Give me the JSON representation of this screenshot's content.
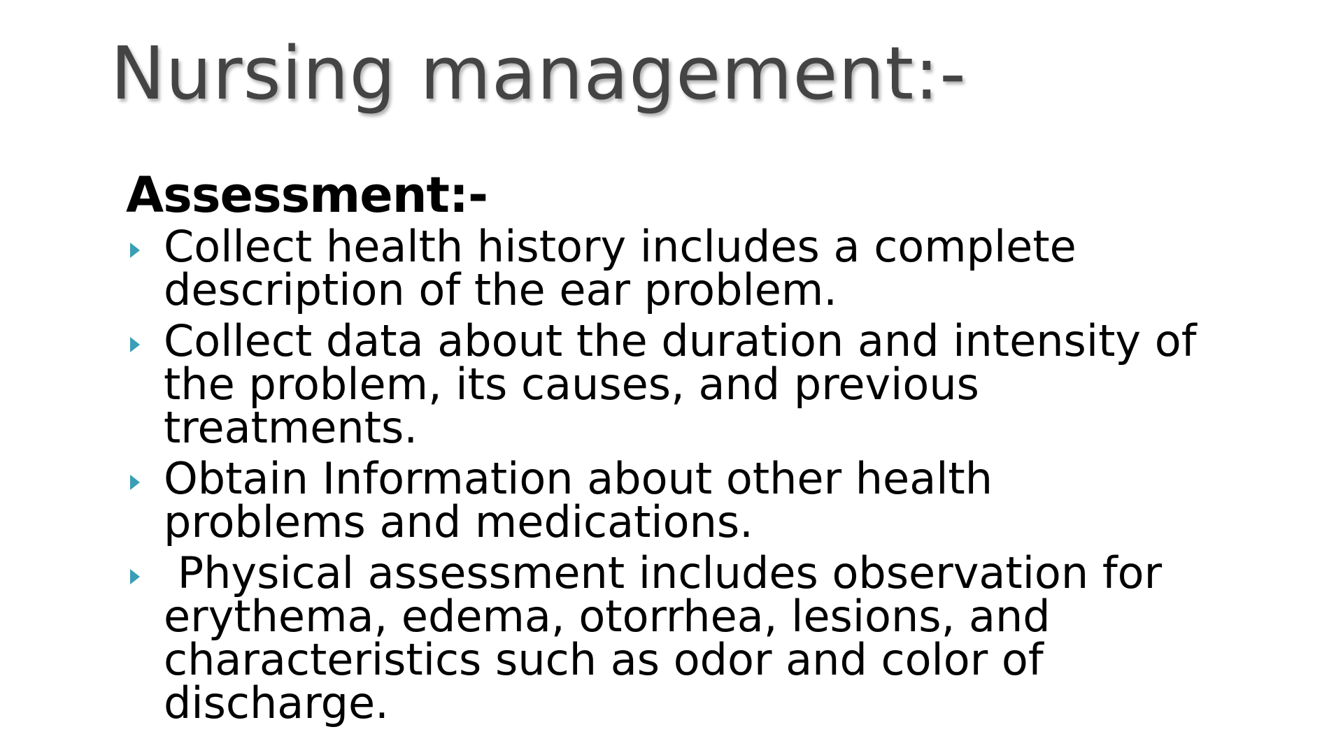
{
  "slide": {
    "title": "Nursing management:-",
    "subheading": "Assessment:-",
    "bullets": [
      "Collect health history includes a complete description of the ear problem.",
      "Collect data about the duration and intensity of the problem, its causes, and previous treatments.",
      "Obtain Information about other health problems and medications.",
      " Physical assessment includes observation for erythema, edema, otorrhea, lesions, and characteristics such as odor and color of discharge."
    ]
  }
}
